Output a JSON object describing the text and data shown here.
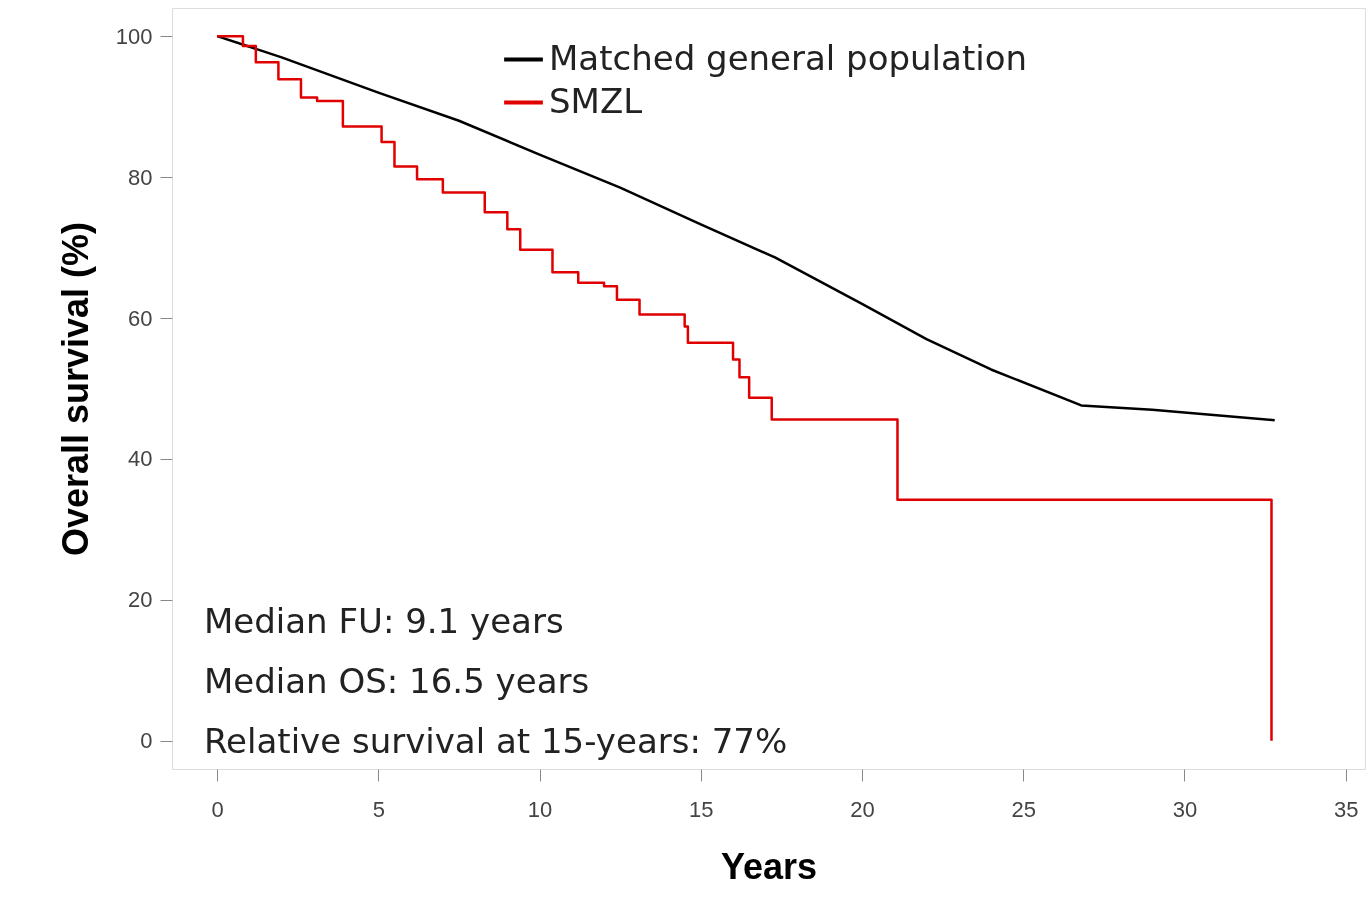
{
  "chart_data": {
    "type": "line",
    "xlabel": "Years",
    "ylabel": "Overall survival (%)",
    "xlim": [
      -1.4,
      35.6
    ],
    "ylim": [
      -4,
      104
    ],
    "xticks": [
      0,
      5,
      10,
      15,
      20,
      25,
      30,
      35
    ],
    "yticks": [
      0,
      20,
      40,
      60,
      80,
      100
    ],
    "grid": false,
    "legend": "top",
    "marker": "none",
    "line_style": "solid",
    "series": [
      {
        "name": "Matched general population",
        "color": "#000000",
        "type": "line",
        "x": [
          0,
          2,
          5,
          7.5,
          10,
          12.5,
          15,
          17.3,
          20,
          22,
          24,
          26.8,
          29,
          32.8
        ],
        "values": [
          100,
          97,
          92,
          88,
          83.2,
          78.5,
          73.3,
          68.6,
          62,
          57,
          52.7,
          47.6,
          47,
          45.5
        ]
      },
      {
        "name": "SMZL",
        "color": "#e00000",
        "type": "step",
        "x": [
          0,
          0.8,
          1.2,
          1.9,
          2.6,
          3.1,
          3.9,
          5.1,
          5.5,
          6.2,
          7.0,
          8.3,
          9.0,
          9.4,
          10.4,
          11.2,
          12.0,
          12.4,
          13.1,
          14.5,
          14.6,
          16.0,
          16.2,
          16.5,
          17.2,
          21.1,
          32.7,
          32.7
        ],
        "values": [
          100,
          98.6,
          96.3,
          93.9,
          91.3,
          90.8,
          87.2,
          85,
          81.5,
          79.7,
          77.8,
          75,
          72.6,
          69.7,
          66.5,
          65,
          64.5,
          62.6,
          60.5,
          58.8,
          56.5,
          54.1,
          51.6,
          48.7,
          45.6,
          34.2,
          34.2,
          0
        ]
      }
    ],
    "annotations": [
      "Median FU: 9.1 years",
      "Median OS: 16.5 years",
      "Relative survival at 15-years: 77%"
    ]
  }
}
